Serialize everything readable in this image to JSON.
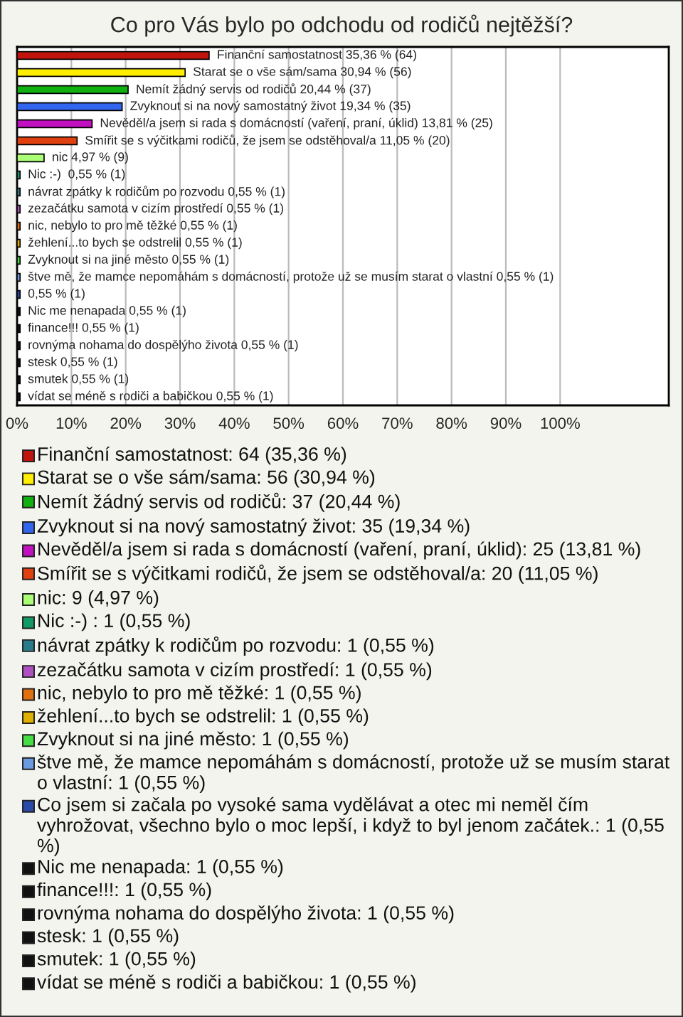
{
  "chart_data": {
    "type": "bar",
    "orientation": "horizontal",
    "title": "Co pro Vás bylo po odchodu od rodičů nejtěžší?",
    "categories": [
      null,
      null,
      null,
      null,
      null,
      null,
      null,
      null,
      null,
      null,
      null,
      null,
      null,
      null,
      null,
      null,
      null,
      null,
      null,
      null,
      null
    ],
    "series": [
      {
        "name": "Finanční samostatnost: 64 (35,36 %)",
        "color": "#c0140c",
        "values": [
          35.36,
          null,
          null,
          null,
          null,
          null,
          null,
          null,
          null,
          null,
          null,
          null,
          null,
          null,
          null,
          null,
          null,
          null,
          null,
          null,
          null
        ],
        "value_labels": [
          "Finanční samostatnost 35,36 % (64)",
          null,
          null,
          null,
          null,
          null,
          null,
          null,
          null,
          null,
          null,
          null,
          null,
          null,
          null,
          null,
          null,
          null,
          null,
          null,
          null
        ]
      },
      {
        "name": "Starat se o vše sám/sama: 56 (30,94 %)",
        "color": "#ffee00",
        "values": [
          null,
          30.94,
          null,
          null,
          null,
          null,
          null,
          null,
          null,
          null,
          null,
          null,
          null,
          null,
          null,
          null,
          null,
          null,
          null,
          null,
          null
        ],
        "value_labels": [
          null,
          "Starat se o vše sám/sama 30,94 % (56)",
          null,
          null,
          null,
          null,
          null,
          null,
          null,
          null,
          null,
          null,
          null,
          null,
          null,
          null,
          null,
          null,
          null,
          null,
          null
        ]
      },
      {
        "name": "Nemít žádný servis od rodičů: 37 (20,44 %)",
        "color": "#10b010",
        "values": [
          null,
          null,
          20.44,
          null,
          null,
          null,
          null,
          null,
          null,
          null,
          null,
          null,
          null,
          null,
          null,
          null,
          null,
          null,
          null,
          null,
          null
        ],
        "value_labels": [
          null,
          null,
          "Nemít žádný servis od rodičů 20,44 % (37)",
          null,
          null,
          null,
          null,
          null,
          null,
          null,
          null,
          null,
          null,
          null,
          null,
          null,
          null,
          null,
          null,
          null,
          null
        ]
      },
      {
        "name": "Zvyknout si na nový samostatný život: 35 (19,34 %)",
        "color": "#3366ee",
        "values": [
          null,
          null,
          null,
          19.34,
          null,
          null,
          null,
          null,
          null,
          null,
          null,
          null,
          null,
          null,
          null,
          null,
          null,
          null,
          null,
          null,
          null
        ],
        "value_labels": [
          null,
          null,
          null,
          "Zvyknout si na nový samostatný život 19,34 % (35)",
          null,
          null,
          null,
          null,
          null,
          null,
          null,
          null,
          null,
          null,
          null,
          null,
          null,
          null,
          null,
          null,
          null
        ]
      },
      {
        "name": "Nevěděl/a jsem si rada s domácností (vaření, praní, úklid): 25 (13,81 %)",
        "color": "#c010c0",
        "values": [
          null,
          null,
          null,
          null,
          13.81,
          null,
          null,
          null,
          null,
          null,
          null,
          null,
          null,
          null,
          null,
          null,
          null,
          null,
          null,
          null,
          null
        ],
        "value_labels": [
          null,
          null,
          null,
          null,
          "Nevěděl/a jsem si rada s domácností (vaření, praní, úklid) 13,81 % (25)",
          null,
          null,
          null,
          null,
          null,
          null,
          null,
          null,
          null,
          null,
          null,
          null,
          null,
          null,
          null,
          null
        ]
      },
      {
        "name": "Smířit se s výčitkami rodičů, že jsem se odstěhoval/a: 20 (11,05 %)",
        "color": "#e04010",
        "values": [
          null,
          null,
          null,
          null,
          null,
          11.05,
          null,
          null,
          null,
          null,
          null,
          null,
          null,
          null,
          null,
          null,
          null,
          null,
          null,
          null,
          null
        ],
        "value_labels": [
          null,
          null,
          null,
          null,
          null,
          "Smířit se s výčitkami rodičů, že jsem se odstěhoval/a 11,05 % (20)",
          null,
          null,
          null,
          null,
          null,
          null,
          null,
          null,
          null,
          null,
          null,
          null,
          null,
          null,
          null
        ]
      },
      {
        "name": "nic: 9 (4,97 %)",
        "color": "#aaff77",
        "values": [
          null,
          null,
          null,
          null,
          null,
          null,
          4.97,
          null,
          null,
          null,
          null,
          null,
          null,
          null,
          null,
          null,
          null,
          null,
          null,
          null,
          null
        ],
        "value_labels": [
          null,
          null,
          null,
          null,
          null,
          null,
          "nic 4,97 % (9)",
          null,
          null,
          null,
          null,
          null,
          null,
          null,
          null,
          null,
          null,
          null,
          null,
          null,
          null
        ]
      },
      {
        "name": "Nic :-) : 1 (0,55 %)",
        "color": "#119966",
        "values": [
          null,
          null,
          null,
          null,
          null,
          null,
          null,
          0.55,
          null,
          null,
          null,
          null,
          null,
          null,
          null,
          null,
          null,
          null,
          null,
          null,
          null
        ],
        "value_labels": [
          null,
          null,
          null,
          null,
          null,
          null,
          null,
          "Nic :-)  0,55 % (1)",
          null,
          null,
          null,
          null,
          null,
          null,
          null,
          null,
          null,
          null,
          null,
          null,
          null
        ]
      },
      {
        "name": "návrat zpátky k rodičům po rozvodu: 1 (0,55 %)",
        "color": "#2a7a8a",
        "values": [
          null,
          null,
          null,
          null,
          null,
          null,
          null,
          null,
          0.55,
          null,
          null,
          null,
          null,
          null,
          null,
          null,
          null,
          null,
          null,
          null,
          null
        ],
        "value_labels": [
          null,
          null,
          null,
          null,
          null,
          null,
          null,
          null,
          "návrat zpátky k rodičům po rozvodu 0,55 % (1)",
          null,
          null,
          null,
          null,
          null,
          null,
          null,
          null,
          null,
          null,
          null,
          null
        ]
      },
      {
        "name": "zezačátku samota v cizím prostředí: 1 (0,55 %)",
        "color": "#b050c0",
        "values": [
          null,
          null,
          null,
          null,
          null,
          null,
          null,
          null,
          null,
          0.55,
          null,
          null,
          null,
          null,
          null,
          null,
          null,
          null,
          null,
          null,
          null
        ],
        "value_labels": [
          null,
          null,
          null,
          null,
          null,
          null,
          null,
          null,
          null,
          "zezačátku samota v cizím prostředí 0,55 % (1)",
          null,
          null,
          null,
          null,
          null,
          null,
          null,
          null,
          null,
          null,
          null
        ]
      },
      {
        "name": "nic, nebylo to pro mě těžké: 1 (0,55 %)",
        "color": "#e07010",
        "values": [
          null,
          null,
          null,
          null,
          null,
          null,
          null,
          null,
          null,
          null,
          0.55,
          null,
          null,
          null,
          null,
          null,
          null,
          null,
          null,
          null,
          null
        ],
        "value_labels": [
          null,
          null,
          null,
          null,
          null,
          null,
          null,
          null,
          null,
          null,
          "nic, nebylo to pro mě těžké 0,55 % (1)",
          null,
          null,
          null,
          null,
          null,
          null,
          null,
          null,
          null,
          null
        ]
      },
      {
        "name": "žehlení...to bych se odstrelil: 1 (0,55 %)",
        "color": "#e0b000",
        "values": [
          null,
          null,
          null,
          null,
          null,
          null,
          null,
          null,
          null,
          null,
          null,
          0.55,
          null,
          null,
          null,
          null,
          null,
          null,
          null,
          null,
          null
        ],
        "value_labels": [
          null,
          null,
          null,
          null,
          null,
          null,
          null,
          null,
          null,
          null,
          null,
          "žehlení...to bych se odstrelil 0,55 % (1)",
          null,
          null,
          null,
          null,
          null,
          null,
          null,
          null,
          null
        ]
      },
      {
        "name": "Zvyknout si na jiné město: 1 (0,55 %)",
        "color": "#44dd44",
        "values": [
          null,
          null,
          null,
          null,
          null,
          null,
          null,
          null,
          null,
          null,
          null,
          null,
          0.55,
          null,
          null,
          null,
          null,
          null,
          null,
          null,
          null
        ],
        "value_labels": [
          null,
          null,
          null,
          null,
          null,
          null,
          null,
          null,
          null,
          null,
          null,
          null,
          "Zvyknout si na jiné město 0,55 % (1)",
          null,
          null,
          null,
          null,
          null,
          null,
          null,
          null
        ]
      },
      {
        "name": "štve mě, že mamce nepomáhám s domácností, protože už se musím starat o vlastní: 1 (0,55 %)",
        "color": "#6a9ae0",
        "values": [
          null,
          null,
          null,
          null,
          null,
          null,
          null,
          null,
          null,
          null,
          null,
          null,
          null,
          0.55,
          null,
          null,
          null,
          null,
          null,
          null,
          null
        ],
        "value_labels": [
          null,
          null,
          null,
          null,
          null,
          null,
          null,
          null,
          null,
          null,
          null,
          null,
          null,
          "štve mě, že mamce nepomáhám s domácností, protože už se musím starat o vlastní 0,55 % (1)",
          null,
          null,
          null,
          null,
          null,
          null,
          null
        ]
      },
      {
        "name": "Co jsem si začala po vysoké sama vydělávat a otec mi neměl čím vyhrožovat, všechno bylo o moc lepší, i když to byl jenom začátek.: 1 (0,55 %)",
        "color": "#2a4aaa",
        "values": [
          null,
          null,
          null,
          null,
          null,
          null,
          null,
          null,
          null,
          null,
          null,
          null,
          null,
          null,
          0.55,
          null,
          null,
          null,
          null,
          null,
          null
        ],
        "value_labels": [
          null,
          null,
          null,
          null,
          null,
          null,
          null,
          null,
          null,
          null,
          null,
          null,
          null,
          null,
          "0,55 % (1)",
          null,
          null,
          null,
          null,
          null,
          null
        ]
      },
      {
        "name": "Nic me nenapada: 1 (0,55 %)",
        "color": "#111111",
        "values": [
          null,
          null,
          null,
          null,
          null,
          null,
          null,
          null,
          null,
          null,
          null,
          null,
          null,
          null,
          null,
          0.55,
          null,
          null,
          null,
          null,
          null
        ],
        "value_labels": [
          null,
          null,
          null,
          null,
          null,
          null,
          null,
          null,
          null,
          null,
          null,
          null,
          null,
          null,
          null,
          "Nic me nenapada 0,55 % (1)",
          null,
          null,
          null,
          null,
          null
        ]
      },
      {
        "name": "finance!!!: 1 (0,55 %)",
        "color": "#111111",
        "values": [
          null,
          null,
          null,
          null,
          null,
          null,
          null,
          null,
          null,
          null,
          null,
          null,
          null,
          null,
          null,
          null,
          0.55,
          null,
          null,
          null,
          null
        ],
        "value_labels": [
          null,
          null,
          null,
          null,
          null,
          null,
          null,
          null,
          null,
          null,
          null,
          null,
          null,
          null,
          null,
          null,
          "finance!!! 0,55 % (1)",
          null,
          null,
          null,
          null
        ]
      },
      {
        "name": "rovnýma nohama do dospělýho života: 1 (0,55 %)",
        "color": "#111111",
        "values": [
          null,
          null,
          null,
          null,
          null,
          null,
          null,
          null,
          null,
          null,
          null,
          null,
          null,
          null,
          null,
          null,
          null,
          0.55,
          null,
          null,
          null
        ],
        "value_labels": [
          null,
          null,
          null,
          null,
          null,
          null,
          null,
          null,
          null,
          null,
          null,
          null,
          null,
          null,
          null,
          null,
          null,
          "rovnýma nohama do dospělýho života 0,55 % (1)",
          null,
          null,
          null
        ]
      },
      {
        "name": "stesk: 1 (0,55 %)",
        "color": "#111111",
        "values": [
          null,
          null,
          null,
          null,
          null,
          null,
          null,
          null,
          null,
          null,
          null,
          null,
          null,
          null,
          null,
          null,
          null,
          null,
          0.55,
          null,
          null
        ],
        "value_labels": [
          null,
          null,
          null,
          null,
          null,
          null,
          null,
          null,
          null,
          null,
          null,
          null,
          null,
          null,
          null,
          null,
          null,
          null,
          "stesk 0,55 % (1)",
          null,
          null
        ]
      },
      {
        "name": "smutek: 1 (0,55 %)",
        "color": "#111111",
        "values": [
          null,
          null,
          null,
          null,
          null,
          null,
          null,
          null,
          null,
          null,
          null,
          null,
          null,
          null,
          null,
          null,
          null,
          null,
          null,
          0.55,
          null
        ],
        "value_labels": [
          null,
          null,
          null,
          null,
          null,
          null,
          null,
          null,
          null,
          null,
          null,
          null,
          null,
          null,
          null,
          null,
          null,
          null,
          null,
          "smutek 0,55 % (1)",
          null
        ]
      },
      {
        "name": "vídat se méně s rodiči a babičkou: 1 (0,55 %)",
        "color": "#111111",
        "values": [
          null,
          null,
          null,
          null,
          null,
          null,
          null,
          null,
          null,
          null,
          null,
          null,
          null,
          null,
          null,
          null,
          null,
          null,
          null,
          null,
          0.55
        ],
        "value_labels": [
          null,
          null,
          null,
          null,
          null,
          null,
          null,
          null,
          null,
          null,
          null,
          null,
          null,
          null,
          null,
          null,
          null,
          null,
          null,
          null,
          "vídat se méně s rodiči a babičkou 0,55 % (1)"
        ]
      }
    ],
    "xlim": [
      0,
      120
    ],
    "xticks": [
      {
        "value": 0,
        "label": "0%"
      },
      {
        "value": 10,
        "label": "10%"
      },
      {
        "value": 20,
        "label": "20%"
      },
      {
        "value": 30,
        "label": "30%"
      },
      {
        "value": 40,
        "label": "40%"
      },
      {
        "value": 50,
        "label": "50%"
      },
      {
        "value": 60,
        "label": "60%"
      },
      {
        "value": 70,
        "label": "70%"
      },
      {
        "value": 80,
        "label": "80%"
      },
      {
        "value": 90,
        "label": "90%"
      },
      {
        "value": 100,
        "label": "100%"
      }
    ],
    "grid": "x",
    "legend": "bottom",
    "tick_labels": "x"
  }
}
